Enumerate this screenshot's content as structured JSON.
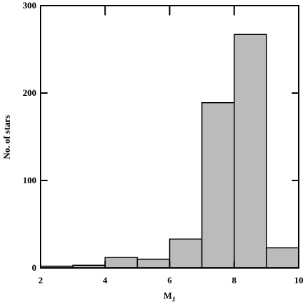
{
  "chart_data": {
    "type": "histogram",
    "xlabel": "M",
    "xlabel_sub": "J",
    "ylabel": "No. of stars",
    "bins": [
      2,
      3,
      4,
      5,
      6,
      7,
      8,
      9,
      10
    ],
    "values": [
      2,
      3,
      12,
      10,
      33,
      189,
      267,
      23
    ],
    "color": "#bbbbbb",
    "xlim": [
      2,
      10
    ],
    "xticks": [
      2,
      4,
      6,
      8,
      10
    ],
    "ylim": [
      0,
      300
    ],
    "yticks": [
      0,
      100,
      200,
      300
    ]
  }
}
